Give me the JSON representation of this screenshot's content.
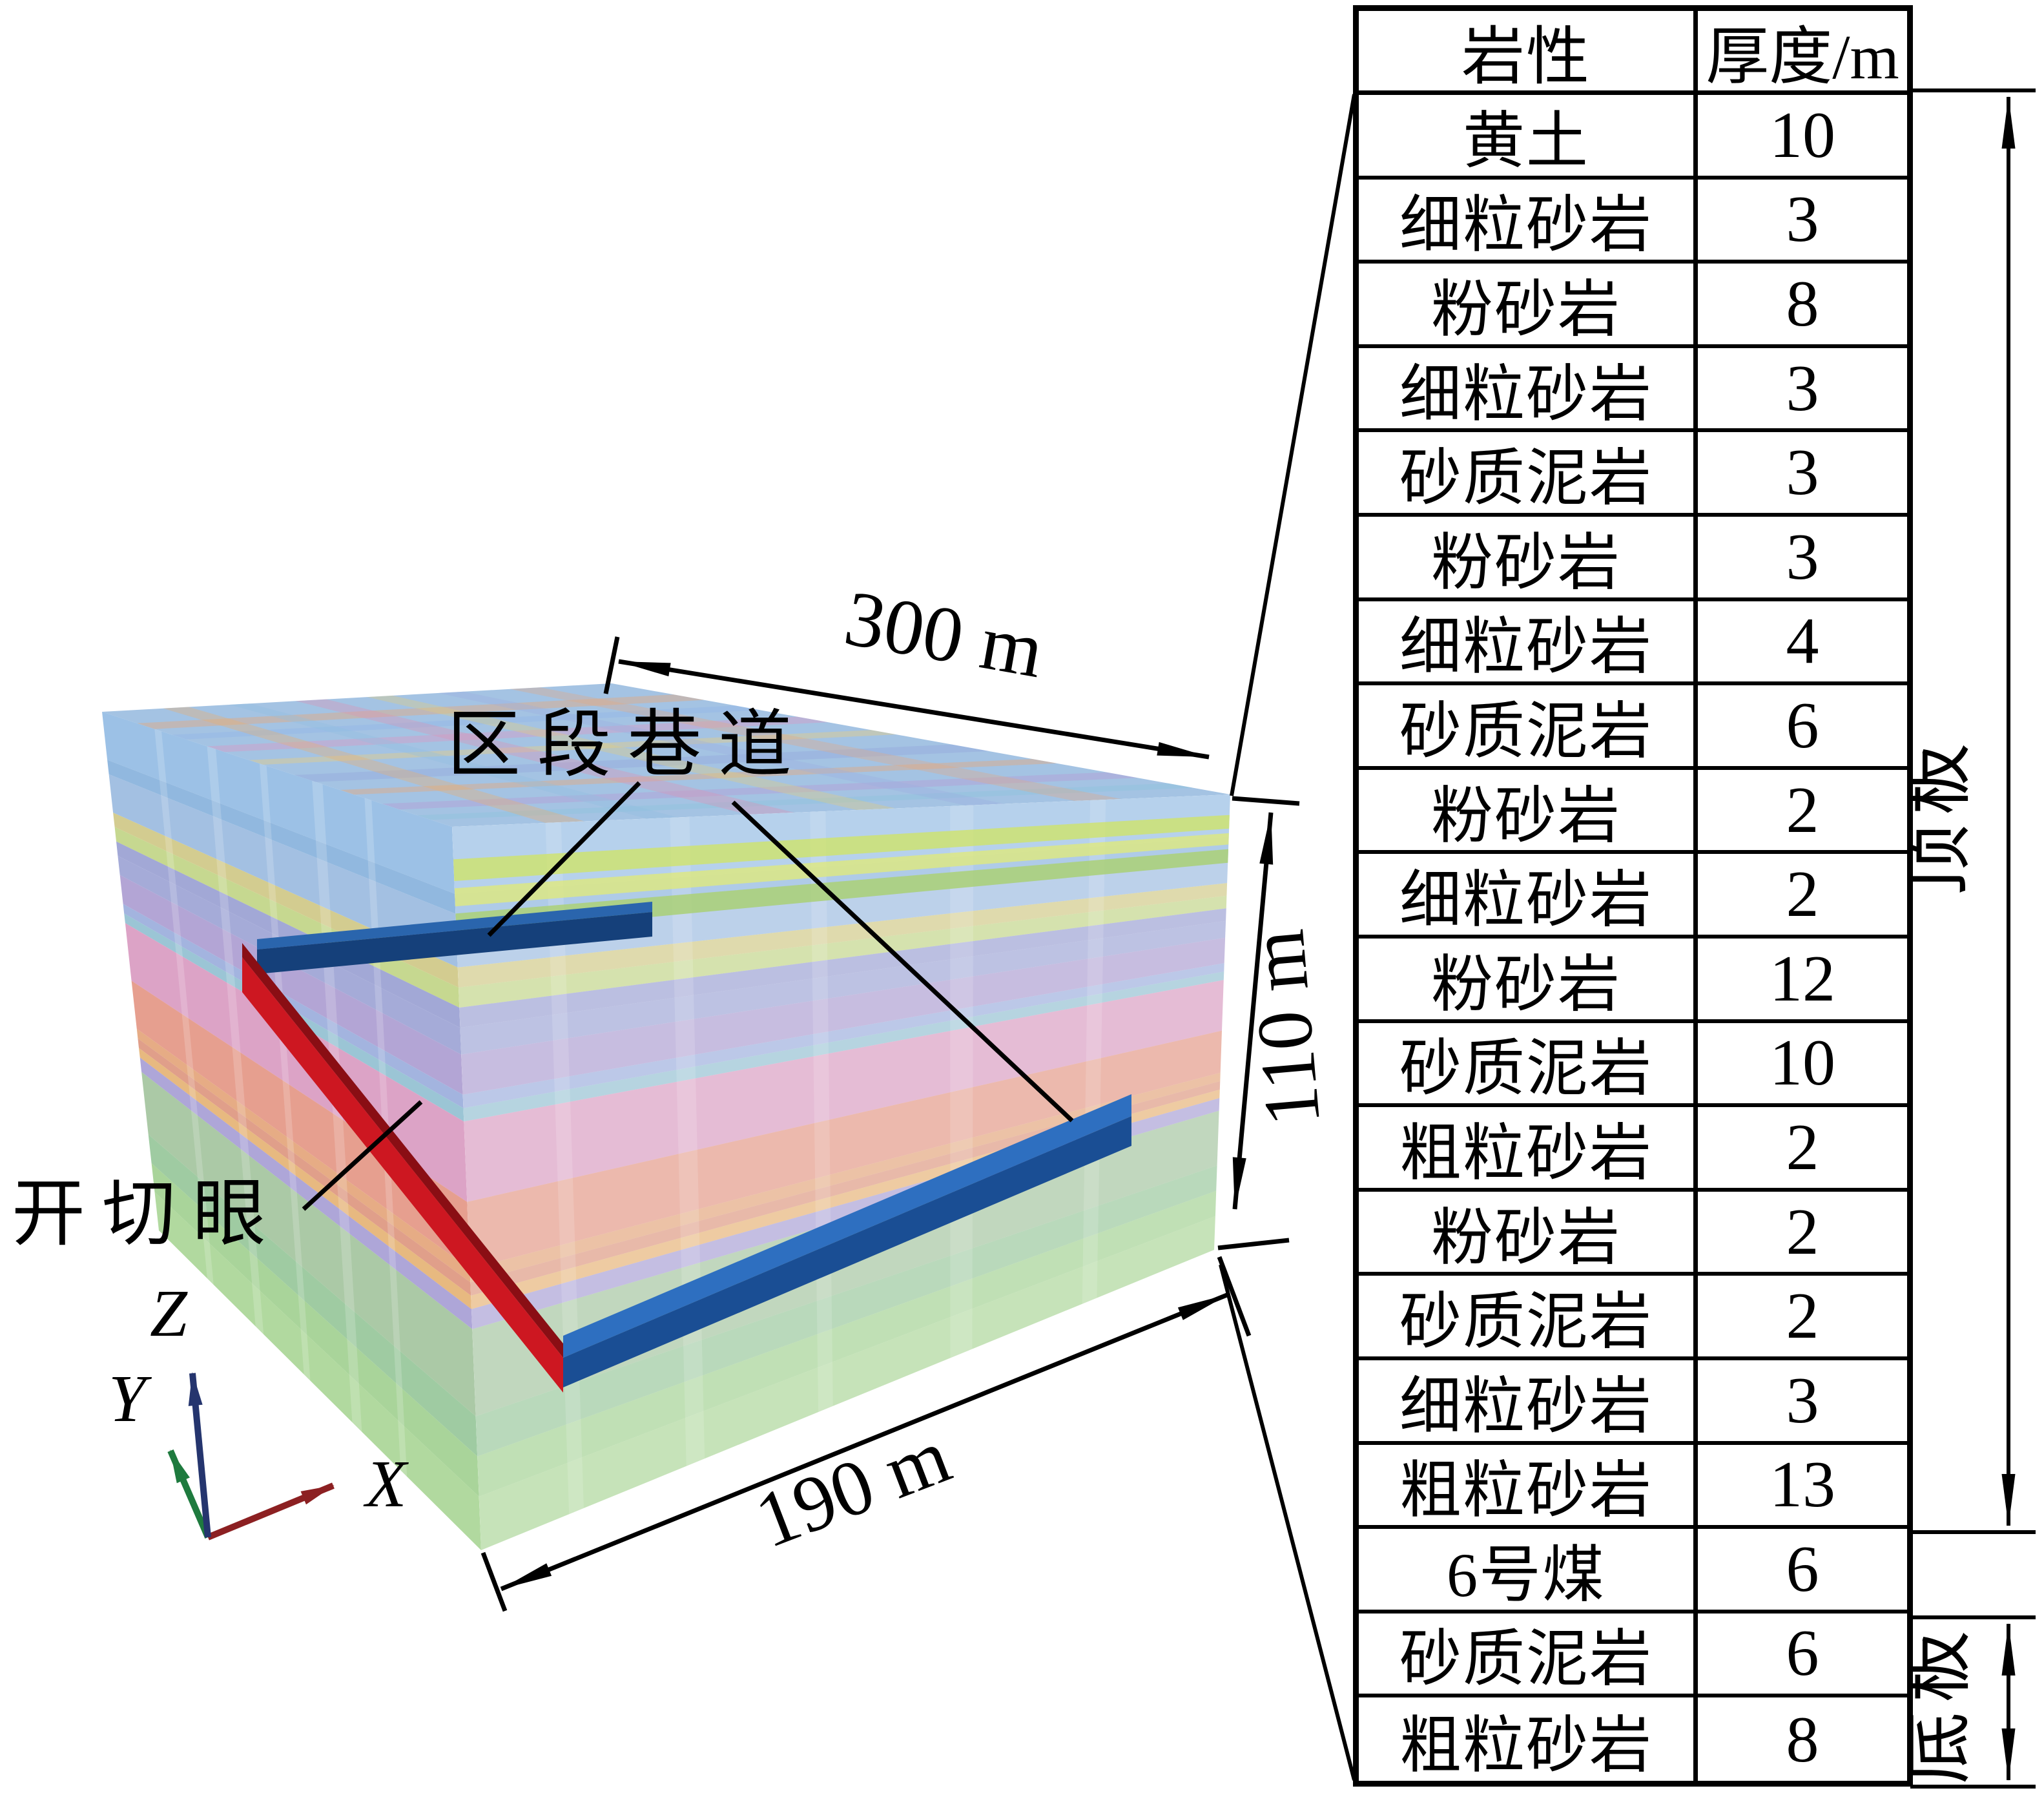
{
  "model": {
    "labels": {
      "roadway": "区段巷道",
      "cut": "开切眼"
    },
    "dimensions": {
      "length": "300 m",
      "height": "110 m",
      "width": "190 m"
    },
    "axes": {
      "x": "X",
      "y": "Y",
      "z": "Z"
    },
    "axis_colors": {
      "x": "#8c2022",
      "y": "#1e7a3e",
      "z": "#25356e"
    },
    "beam_colors": {
      "cut_top": "#8a0e14",
      "cut_side": "#cd1721",
      "roadway_top": "#2e6fc0",
      "roadway_side": "#1a4e94",
      "roadway_upper_top": "#2a65ad",
      "roadway_upper_side": "#15407a"
    },
    "top_face_color": "#9fc0e2",
    "goaf_stripe_colors": [
      "#cfe36a",
      "#dfe87d",
      "#a8d06e"
    ],
    "top_stripes_x": [
      {
        "t": 0.1,
        "w": 0.05,
        "c": "#e8a878"
      },
      {
        "t": 0.2,
        "w": 0.04,
        "c": "#92b4e6"
      },
      {
        "t": 0.3,
        "w": 0.05,
        "c": "#d898c4"
      },
      {
        "t": 0.42,
        "w": 0.04,
        "c": "#e8cc80"
      },
      {
        "t": 0.55,
        "w": 0.06,
        "c": "#94a8dc"
      },
      {
        "t": 0.68,
        "w": 0.04,
        "c": "#e8a878"
      },
      {
        "t": 0.8,
        "w": 0.05,
        "c": "#b49ad4"
      },
      {
        "t": 0.9,
        "w": 0.04,
        "c": "#8cc4dc"
      }
    ],
    "top_stripes_y": [
      {
        "t": 0.12,
        "w": 0.05,
        "c": "#e8b070"
      },
      {
        "t": 0.25,
        "w": 0.04,
        "c": "#90c0e0"
      },
      {
        "t": 0.38,
        "w": 0.06,
        "c": "#dc94b4"
      },
      {
        "t": 0.52,
        "w": 0.05,
        "c": "#e0cc7c"
      },
      {
        "t": 0.66,
        "w": 0.05,
        "c": "#9cb0e0"
      },
      {
        "t": 0.8,
        "w": 0.06,
        "c": "#e0a884"
      }
    ]
  },
  "strata": {
    "headers": [
      "岩性",
      "厚度/m"
    ],
    "rows": [
      {
        "lithology": "黄土",
        "thickness": "10",
        "color": "#86b3e0"
      },
      {
        "lithology": "细粒砂岩",
        "thickness": "3",
        "color": "#79a8d8"
      },
      {
        "lithology": "粉砂岩",
        "thickness": "8",
        "color": "#8fb2dc"
      },
      {
        "lithology": "细粒砂岩",
        "thickness": "3",
        "color": "#c9c177"
      },
      {
        "lithology": "砂质泥岩",
        "thickness": "3",
        "color": "#b9cf78"
      },
      {
        "lithology": "粉砂岩",
        "thickness": "3",
        "color": "#8d95cd"
      },
      {
        "lithology": "细粒砂岩",
        "thickness": "4",
        "color": "#9199d0"
      },
      {
        "lithology": "砂质泥岩",
        "thickness": "6",
        "color": "#a291cc"
      },
      {
        "lithology": "粉砂岩",
        "thickness": "2",
        "color": "#8fa3d8"
      },
      {
        "lithology": "细粒砂岩",
        "thickness": "2",
        "color": "#85b8cc"
      },
      {
        "lithology": "粉砂岩",
        "thickness": "12",
        "color": "#d48fb9"
      },
      {
        "lithology": "砂质泥岩",
        "thickness": "10",
        "color": "#e08a76"
      },
      {
        "lithology": "粗粒砂岩",
        "thickness": "2",
        "color": "#e09a6a"
      },
      {
        "lithology": "粉砂岩",
        "thickness": "2",
        "color": "#d98a70"
      },
      {
        "lithology": "砂质泥岩",
        "thickness": "2",
        "color": "#e2a964"
      },
      {
        "lithology": "细粒砂岩",
        "thickness": "3",
        "color": "#9c93cf"
      },
      {
        "lithology": "粗粒砂岩",
        "thickness": "13",
        "color": "#98bd92"
      },
      {
        "lithology": "6号煤",
        "thickness": "6",
        "color": "#8ac08e"
      },
      {
        "lithology": "砂质泥岩",
        "thickness": "6",
        "color": "#96cb84"
      },
      {
        "lithology": "粗粒砂岩",
        "thickness": "8",
        "color": "#a0d18a"
      }
    ],
    "roof_label": "顶板",
    "floor_label": "底板",
    "roof_row_span": [
      1,
      17
    ],
    "floor_row_span": [
      19,
      20
    ]
  }
}
